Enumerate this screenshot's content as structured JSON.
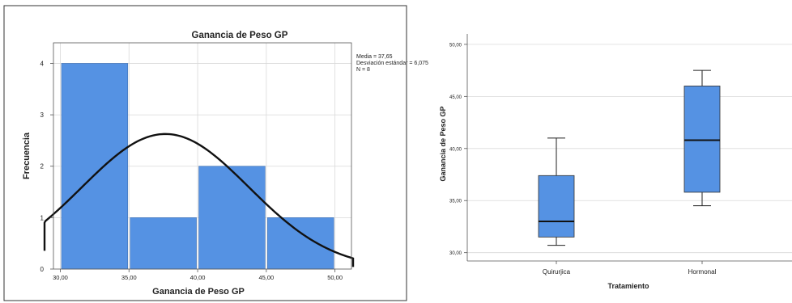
{
  "colors": {
    "bar_fill": "#5592E3",
    "bar_stroke": "#3F6FB0",
    "curve": "#111111",
    "grid": "#D9D9D9",
    "axis": "#555555",
    "frame": "#333333",
    "text": "#222222"
  },
  "chart_data": [
    {
      "type": "bar",
      "subtype": "histogram",
      "title": "Ganancia de Peso GP",
      "xlabel": "Ganancia de Peso GP",
      "ylabel": "Frecuencia",
      "x_ticks": [
        "30,00",
        "35,00",
        "40,00",
        "45,00",
        "50,00"
      ],
      "y_ticks": [
        "0",
        "1",
        "2",
        "3",
        "4"
      ],
      "xlim": [
        29.5,
        51.2
      ],
      "ylim": [
        0,
        4.4
      ],
      "bins": [
        {
          "from": 30,
          "to": 35,
          "count": 4
        },
        {
          "from": 35,
          "to": 40,
          "count": 1
        },
        {
          "from": 40,
          "to": 45,
          "count": 2
        },
        {
          "from": 45,
          "to": 50,
          "count": 1
        }
      ],
      "normal_curve": {
        "mean": 37.65,
        "sd": 6.075,
        "n": 8,
        "bin_width": 5
      },
      "stats_box": [
        "Media = 37,65",
        "Desviación estándar = 6,075",
        "N = 8"
      ],
      "grid": true
    },
    {
      "type": "boxplot",
      "xlabel": "Tratamiento",
      "ylabel": "Ganancia de Peso GP",
      "categories": [
        "Quirurjica",
        "Hormonal"
      ],
      "y_ticks": [
        "30,00",
        "35,00",
        "40,00",
        "45,00",
        "50,00"
      ],
      "ylim": [
        29.2,
        51
      ],
      "boxes": [
        {
          "name": "Quirurjica",
          "min": 30.7,
          "q1": 31.5,
          "median": 33.0,
          "q3": 37.4,
          "max": 41.0
        },
        {
          "name": "Hormonal",
          "min": 34.5,
          "q1": 35.8,
          "median": 40.8,
          "q3": 46.0,
          "max": 47.5
        }
      ],
      "grid": true
    }
  ]
}
